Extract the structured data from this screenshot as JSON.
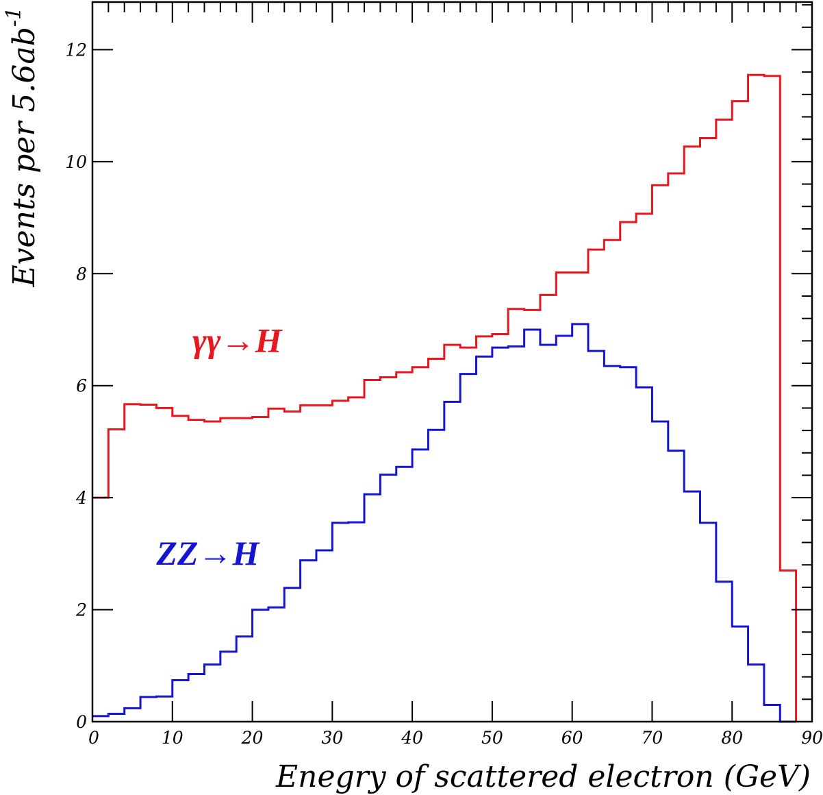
{
  "chart_data": {
    "type": "step-histogram",
    "title": "",
    "xlabel": "Enegry of scattered electron (GeV)",
    "ylabel": "Events per 5.6ab",
    "ylabel_superscript": "-1",
    "xlim": [
      0,
      90
    ],
    "ylim": [
      0,
      12.85
    ],
    "x_ticks": [
      0,
      10,
      20,
      30,
      40,
      50,
      60,
      70,
      80,
      90
    ],
    "x_tick_labels": [
      "0",
      "10",
      "20",
      "30",
      "40",
      "50",
      "60",
      "70",
      "80",
      "90"
    ],
    "y_ticks": [
      0,
      2,
      4,
      6,
      8,
      10,
      12
    ],
    "y_tick_labels": [
      "0",
      "2",
      "4",
      "6",
      "8",
      "10",
      "12"
    ],
    "grid": false,
    "bin_width": 2,
    "bin_edges": [
      0,
      2,
      4,
      6,
      8,
      10,
      12,
      14,
      16,
      18,
      20,
      22,
      24,
      26,
      28,
      30,
      32,
      34,
      36,
      38,
      40,
      42,
      44,
      46,
      48,
      50,
      52,
      54,
      56,
      58,
      60,
      62,
      64,
      66,
      68,
      70,
      72,
      74,
      76,
      78,
      80,
      82,
      84,
      86,
      88
    ],
    "series": [
      {
        "name": "γγ→H",
        "color": "#e8161f",
        "values": [
          4.0,
          5.22,
          5.67,
          5.66,
          5.6,
          5.46,
          5.39,
          5.36,
          5.42,
          5.42,
          5.44,
          5.59,
          5.54,
          5.65,
          5.65,
          5.73,
          5.79,
          6.1,
          6.15,
          6.24,
          6.33,
          6.48,
          6.73,
          6.68,
          6.88,
          6.92,
          7.37,
          7.35,
          7.62,
          8.02,
          8.02,
          8.43,
          8.6,
          8.92,
          9.07,
          9.58,
          9.79,
          10.27,
          10.42,
          10.75,
          11.08,
          11.55,
          11.53,
          2.7
        ]
      },
      {
        "name": "ZZ→H",
        "color": "#1515d0",
        "values": [
          0.1,
          0.14,
          0.24,
          0.44,
          0.45,
          0.74,
          0.85,
          1.02,
          1.25,
          1.52,
          2.0,
          2.04,
          2.39,
          2.88,
          3.06,
          3.55,
          3.56,
          4.06,
          4.41,
          4.55,
          4.86,
          5.21,
          5.71,
          6.21,
          6.52,
          6.68,
          6.7,
          7.0,
          6.73,
          6.89,
          7.1,
          6.62,
          6.35,
          6.33,
          5.97,
          5.36,
          4.84,
          4.11,
          3.55,
          2.5,
          1.7,
          1.02,
          0.3,
          0.0
        ]
      }
    ],
    "annotations": [
      {
        "text": "γγ→H",
        "color": "#e8161f",
        "x": 12.5,
        "y": 6.6
      },
      {
        "text": "ZZ→H",
        "color": "#1515d0",
        "x": 8,
        "y": 2.8
      }
    ]
  }
}
